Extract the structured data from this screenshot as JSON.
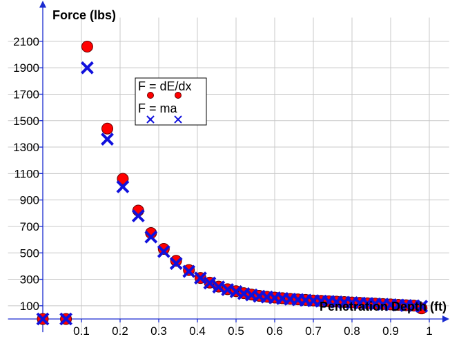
{
  "chart_data": {
    "type": "scatter",
    "title": "",
    "xlabel": "Penetration Depth (ft)",
    "ylabel": "Force (lbs)",
    "xlim": [
      -0.09,
      1.055
    ],
    "ylim": [
      -100,
      2300
    ],
    "x_ticks": [
      0.1,
      0.2,
      0.3,
      0.4,
      0.5,
      0.6,
      0.7,
      0.8,
      0.9,
      1
    ],
    "x_tick_labels": [
      "0.1",
      "0.2",
      "0.3",
      "0.4",
      "0.5",
      "0.6",
      "0.7",
      "0.8",
      "0.9",
      "1"
    ],
    "y_ticks": [
      100,
      300,
      500,
      700,
      900,
      1100,
      1300,
      1500,
      1700,
      1900,
      2100
    ],
    "y_tick_labels": [
      "100",
      "300",
      "500",
      "700",
      "900",
      "1100",
      "1300",
      "1500",
      "1700",
      "1900",
      "2100"
    ],
    "grid": true,
    "legend_position": "upper-middle",
    "series": [
      {
        "name": "F = dE/dx",
        "marker": "circle",
        "color": "#ff0000",
        "edge_color": "#660000",
        "x": [
          0,
          0.06,
          0.115,
          0.167,
          0.207,
          0.247,
          0.28,
          0.313,
          0.345,
          0.378,
          0.408,
          0.432,
          0.455,
          0.478,
          0.5,
          0.52,
          0.54,
          0.56,
          0.58,
          0.6,
          0.62,
          0.64,
          0.66,
          0.68,
          0.7,
          0.72,
          0.74,
          0.76,
          0.78,
          0.8,
          0.82,
          0.84,
          0.86,
          0.88,
          0.9,
          0.92,
          0.94,
          0.96,
          0.98
        ],
        "y": [
          0,
          0,
          2060,
          1440,
          1060,
          820,
          650,
          530,
          440,
          370,
          310,
          275,
          245,
          225,
          210,
          195,
          185,
          175,
          168,
          162,
          157,
          152,
          148,
          144,
          140,
          137,
          134,
          131,
          128,
          125,
          122,
          119,
          116,
          113,
          110,
          107,
          104,
          101,
          80
        ]
      },
      {
        "name": "F = ma",
        "marker": "x",
        "color": "#1010dd",
        "x": [
          0,
          0.06,
          0.115,
          0.167,
          0.207,
          0.247,
          0.28,
          0.313,
          0.345,
          0.378,
          0.408,
          0.432,
          0.455,
          0.478,
          0.5,
          0.52,
          0.54,
          0.56,
          0.58,
          0.6,
          0.62,
          0.64,
          0.66,
          0.68,
          0.7,
          0.72,
          0.74,
          0.76,
          0.78,
          0.8,
          0.82,
          0.84,
          0.86,
          0.88,
          0.9,
          0.92,
          0.94,
          0.96,
          0.98
        ],
        "y": [
          0,
          0,
          1900,
          1360,
          1000,
          780,
          620,
          510,
          420,
          360,
          310,
          272,
          242,
          222,
          207,
          192,
          182,
          172,
          166,
          160,
          155,
          150,
          146,
          142,
          138,
          135,
          132,
          129,
          126,
          123,
          120,
          117,
          114,
          111,
          108,
          105,
          102,
          99,
          96
        ]
      }
    ]
  }
}
